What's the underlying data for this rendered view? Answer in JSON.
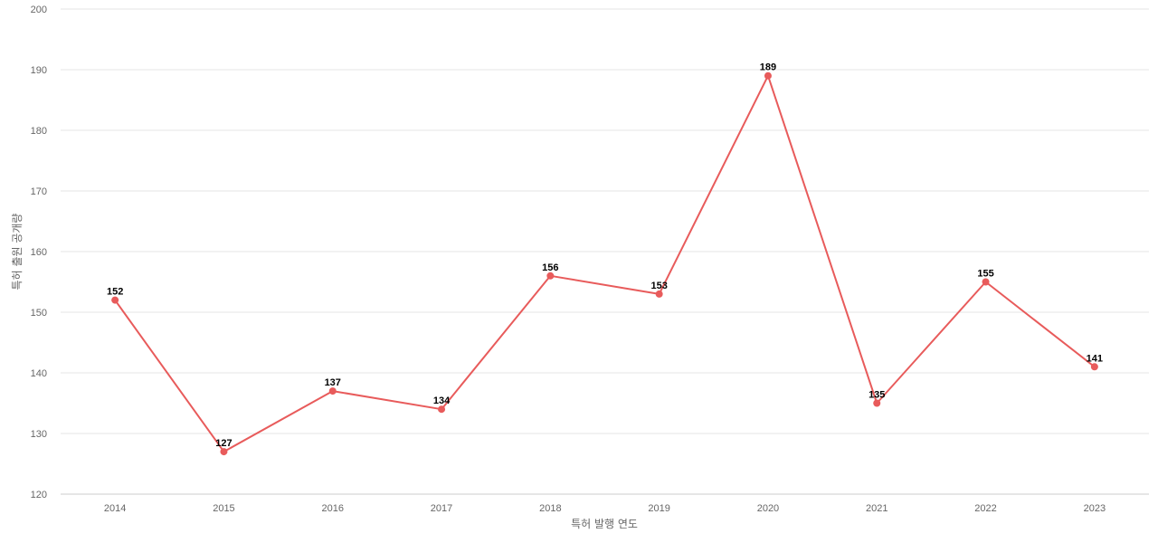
{
  "chart_data": {
    "type": "line",
    "title": "",
    "xlabel": "특허 발행 연도",
    "ylabel": "특허 출원 공개량",
    "categories": [
      "2014",
      "2015",
      "2016",
      "2017",
      "2018",
      "2019",
      "2020",
      "2021",
      "2022",
      "2023"
    ],
    "series": [
      {
        "values": [
          152,
          127,
          137,
          134,
          156,
          153,
          189,
          135,
          155,
          141
        ],
        "color": "#e85b5b"
      }
    ],
    "ylim": [
      120,
      200
    ],
    "yticks": [
      120,
      130,
      140,
      150,
      160,
      170,
      180,
      190,
      200
    ],
    "ytick_labels": [
      "120",
      "130",
      "140",
      "150",
      "160",
      "170",
      "180",
      "190",
      "200"
    ],
    "data_labels": [
      "152",
      "127",
      "137",
      "134",
      "156",
      "153",
      "189",
      "135",
      "155",
      "141"
    ],
    "grid": true,
    "legend": "none"
  }
}
